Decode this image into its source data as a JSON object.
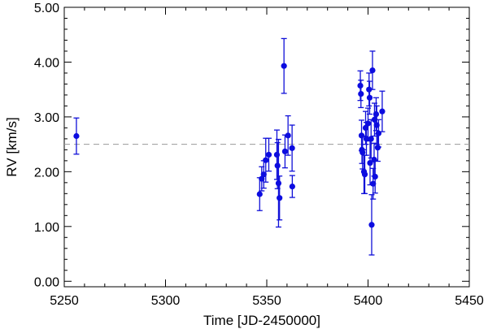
{
  "chart_data": {
    "type": "scatter",
    "title": "",
    "xlabel": "Time [JD-2450000]",
    "ylabel": "RV [km/s]",
    "xlim": [
      5250,
      5450
    ],
    "ylim": [
      -0.1,
      5.0
    ],
    "x_ticks": [
      5250,
      5300,
      5350,
      5400,
      5450
    ],
    "x_tick_labels": [
      "5250",
      "5300",
      "5350",
      "5400",
      "5450"
    ],
    "y_ticks": [
      0,
      1,
      2,
      3,
      4,
      5
    ],
    "y_tick_labels": [
      "0.00",
      "1.00",
      "2.00",
      "3.00",
      "4.00",
      "5.00"
    ],
    "reference_line": {
      "y": 2.5,
      "style": "dashed",
      "color": "#9a9a9a"
    },
    "grid": false,
    "legend": "none",
    "marker_color": "#0c0ce0",
    "series": [
      {
        "points": [
          {
            "x": 5256.0,
            "y": 2.65,
            "err": 0.33
          },
          {
            "x": 5346.5,
            "y": 1.59,
            "err": 0.3
          },
          {
            "x": 5347.5,
            "y": 1.87,
            "err": 0.22
          },
          {
            "x": 5348.5,
            "y": 1.95,
            "err": 0.25
          },
          {
            "x": 5349.5,
            "y": 2.21,
            "err": 0.4
          },
          {
            "x": 5351.0,
            "y": 2.31,
            "err": 0.3
          },
          {
            "x": 5355.0,
            "y": 2.31,
            "err": 0.45
          },
          {
            "x": 5355.3,
            "y": 2.11,
            "err": 0.42
          },
          {
            "x": 5355.8,
            "y": 1.79,
            "err": 0.8
          },
          {
            "x": 5356.3,
            "y": 1.52,
            "err": 0.4
          },
          {
            "x": 5358.5,
            "y": 3.93,
            "err": 0.5
          },
          {
            "x": 5360.5,
            "y": 2.66,
            "err": 0.36
          },
          {
            "x": 5359.0,
            "y": 2.37,
            "err": 0.3
          },
          {
            "x": 5362.5,
            "y": 2.43,
            "err": 0.42
          },
          {
            "x": 5362.6,
            "y": 1.73,
            "err": 0.2
          },
          {
            "x": 5396.2,
            "y": 3.57,
            "err": 0.27
          },
          {
            "x": 5396.5,
            "y": 3.42,
            "err": 0.25
          },
          {
            "x": 5396.8,
            "y": 2.66,
            "err": 0.28
          },
          {
            "x": 5397.0,
            "y": 2.4,
            "err": 0.25
          },
          {
            "x": 5397.3,
            "y": 2.35,
            "err": 0.3
          },
          {
            "x": 5398.0,
            "y": 2.0,
            "err": 0.4
          },
          {
            "x": 5398.4,
            "y": 1.95,
            "err": 0.35
          },
          {
            "x": 5398.8,
            "y": 2.8,
            "err": 0.3
          },
          {
            "x": 5399.2,
            "y": 2.6,
            "err": 0.3
          },
          {
            "x": 5400.0,
            "y": 2.88,
            "err": 0.28
          },
          {
            "x": 5400.5,
            "y": 3.5,
            "err": 0.3
          },
          {
            "x": 5400.8,
            "y": 3.35,
            "err": 0.3
          },
          {
            "x": 5401.0,
            "y": 2.16,
            "err": 0.4
          },
          {
            "x": 5401.5,
            "y": 2.6,
            "err": 0.35
          },
          {
            "x": 5401.8,
            "y": 1.03,
            "err": 0.55
          },
          {
            "x": 5402.2,
            "y": 3.85,
            "err": 0.35
          },
          {
            "x": 5402.5,
            "y": 1.78,
            "err": 0.28
          },
          {
            "x": 5403.0,
            "y": 2.22,
            "err": 0.3
          },
          {
            "x": 5403.2,
            "y": 2.95,
            "err": 0.3
          },
          {
            "x": 5403.5,
            "y": 1.91,
            "err": 0.3
          },
          {
            "x": 5404.0,
            "y": 3.05,
            "err": 0.3
          },
          {
            "x": 5404.3,
            "y": 2.85,
            "err": 0.35
          },
          {
            "x": 5404.8,
            "y": 2.44,
            "err": 0.25
          },
          {
            "x": 5405.2,
            "y": 2.7,
            "err": 0.25
          },
          {
            "x": 5407.0,
            "y": 3.1,
            "err": 0.37
          }
        ]
      }
    ]
  }
}
